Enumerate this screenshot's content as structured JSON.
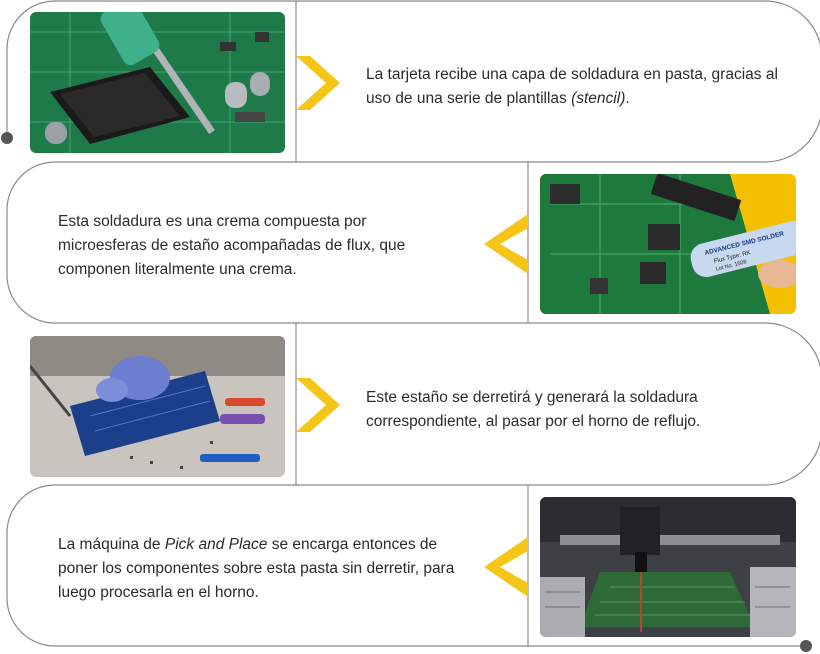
{
  "steps": [
    {
      "text_before": "La tarjeta recibe una capa de soldadura en pasta, gracias al uso de una serie de plantillas ",
      "text_em": "(stencil)",
      "text_after": ".",
      "image_icon": "soldering-iron-on-circuit-board-photo"
    },
    {
      "text_before": "Esta soldadura es una crema compuesta por microesferas de estaño acompañadas de flux, que componen literalmente una crema.",
      "text_em": "",
      "text_after": "",
      "image_icon": "solder-paste-syringe-photo",
      "image_label_1": "ADVANCED SMD SOLDER",
      "image_label_2": "Flux Type: RK",
      "image_label_3": "Lot No. 1508"
    },
    {
      "text_before": "Este estaño se derretirá y generará la soldadura correspondiente, al pasar por el horno de reflujo.",
      "text_em": "",
      "text_after": "",
      "image_icon": "gloved-hands-soldering-board-photo"
    },
    {
      "text_before": "La máquina de ",
      "text_em": "Pick and Place",
      "text_after": " se encarga entonces de poner los componentes sobre esta pasta sin derretir, para luego procesarla en el horno.",
      "image_icon": "pick-and-place-machine-photo"
    }
  ],
  "colors": {
    "accent": "#f5c518",
    "border": "#8a8a8a",
    "text": "#2b2b2b",
    "dot": "#555555"
  }
}
